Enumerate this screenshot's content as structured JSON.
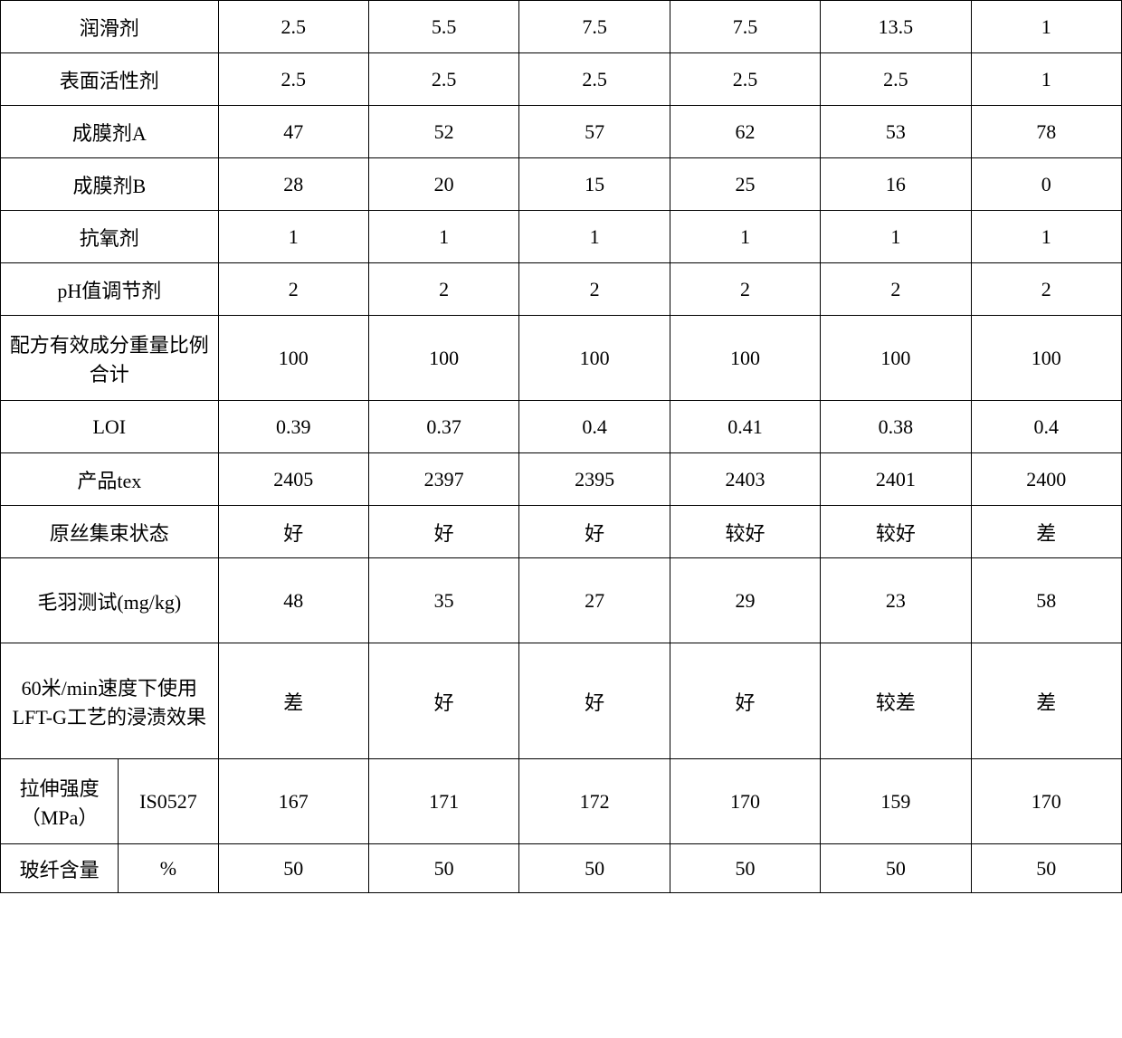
{
  "table": {
    "columns_count": 7,
    "label_col_width": 240,
    "data_col_width": 166,
    "split_left_width": 130,
    "split_right_width": 110,
    "border_color": "#000000",
    "background_color": "#ffffff",
    "font_size": 22,
    "font_family": "SimSun",
    "text_color": "#000000",
    "row_heights": {
      "standard": 58,
      "double": 94,
      "triple": 128,
      "small": 54
    },
    "rows": [
      {
        "type": "single",
        "label": "润滑剂",
        "values": [
          "2.5",
          "5.5",
          "7.5",
          "7.5",
          "13.5",
          "1"
        ],
        "height": "h1"
      },
      {
        "type": "single",
        "label": "表面活性剂",
        "values": [
          "2.5",
          "2.5",
          "2.5",
          "2.5",
          "2.5",
          "1"
        ],
        "height": "h1"
      },
      {
        "type": "single",
        "label": "成膜剂A",
        "values": [
          "47",
          "52",
          "57",
          "62",
          "53",
          "78"
        ],
        "height": "h1"
      },
      {
        "type": "single",
        "label": "成膜剂B",
        "values": [
          "28",
          "20",
          "15",
          "25",
          "16",
          "0"
        ],
        "height": "h1"
      },
      {
        "type": "single",
        "label": "抗氧剂",
        "values": [
          "1",
          "1",
          "1",
          "1",
          "1",
          "1"
        ],
        "height": "h1"
      },
      {
        "type": "single",
        "label": "pH值调节剂",
        "values": [
          "2",
          "2",
          "2",
          "2",
          "2",
          "2"
        ],
        "height": "h1"
      },
      {
        "type": "single",
        "label": "配方有效成分重量比例合计",
        "values": [
          "100",
          "100",
          "100",
          "100",
          "100",
          "100"
        ],
        "height": "h2"
      },
      {
        "type": "single",
        "label": "LOI",
        "values": [
          "0.39",
          "0.37",
          "0.4",
          "0.41",
          "0.38",
          "0.4"
        ],
        "height": "h1"
      },
      {
        "type": "single",
        "label": "产品tex",
        "values": [
          "2405",
          "2397",
          "2395",
          "2403",
          "2401",
          "2400"
        ],
        "height": "h1"
      },
      {
        "type": "single",
        "label": "原丝集束状态",
        "values": [
          "好",
          "好",
          "好",
          "较好",
          "较好",
          "差"
        ],
        "height": "h1"
      },
      {
        "type": "single",
        "label": "毛羽测试(mg/kg)",
        "values": [
          "48",
          "35",
          "27",
          "29",
          "23",
          "58"
        ],
        "height": "h2"
      },
      {
        "type": "single",
        "label": "60米/min速度下使用LFT-G工艺的浸渍效果",
        "values": [
          "差",
          "好",
          "好",
          "好",
          "较差",
          "差"
        ],
        "height": "h3"
      },
      {
        "type": "split",
        "label_left": "拉伸强度（MPa）",
        "label_right": "IS0527",
        "values": [
          "167",
          "171",
          "172",
          "170",
          "159",
          "170"
        ],
        "height": "h2"
      },
      {
        "type": "split",
        "label_left": "玻纤含量",
        "label_right": "%",
        "values": [
          "50",
          "50",
          "50",
          "50",
          "50",
          "50"
        ],
        "height": "hsmall"
      }
    ]
  }
}
